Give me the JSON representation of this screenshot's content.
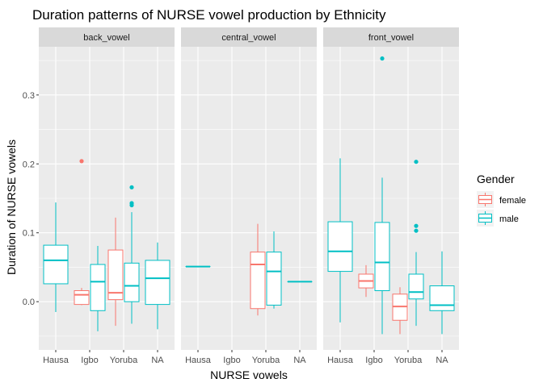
{
  "chart_data": {
    "type": "boxplot",
    "title": "Duration patterns of NURSE vowel production by Ethnicity",
    "xlabel": "NURSE vowels",
    "ylabel": "Duration of NURSE vowels",
    "ylim": [
      -0.07,
      0.37
    ],
    "yticks": [
      0.0,
      0.1,
      0.2,
      0.3
    ],
    "ytick_labels": [
      "0.0",
      "0.1",
      "0.2",
      "0.3"
    ],
    "categories": [
      "Hausa",
      "Igbo",
      "Yoruba",
      "NA"
    ],
    "facets": [
      "back_vowel",
      "central_vowel",
      "front_vowel"
    ],
    "grid": true,
    "legend": {
      "title": "Gender",
      "position": "right",
      "entries": [
        {
          "name": "female",
          "color": "#F8766D"
        },
        {
          "name": "male",
          "color": "#00BFC4"
        }
      ]
    },
    "boxes": [
      {
        "facet": "back_vowel",
        "category": "Hausa",
        "gender": "male",
        "min": -0.015,
        "q1": 0.026,
        "median": 0.06,
        "q3": 0.082,
        "max": 0.144,
        "outliers": []
      },
      {
        "facet": "back_vowel",
        "category": "Igbo",
        "gender": "female",
        "min": -0.005,
        "q1": -0.004,
        "median": 0.01,
        "q3": 0.016,
        "max": 0.02,
        "outliers": [
          0.204
        ]
      },
      {
        "facet": "back_vowel",
        "category": "Igbo",
        "gender": "male",
        "min": -0.043,
        "q1": -0.013,
        "median": 0.029,
        "q3": 0.054,
        "max": 0.081,
        "outliers": []
      },
      {
        "facet": "back_vowel",
        "category": "Yoruba",
        "gender": "female",
        "min": -0.035,
        "q1": 0.003,
        "median": 0.013,
        "q3": 0.075,
        "max": 0.122,
        "outliers": []
      },
      {
        "facet": "back_vowel",
        "category": "Yoruba",
        "gender": "male",
        "min": -0.032,
        "q1": 0.0,
        "median": 0.023,
        "q3": 0.056,
        "max": 0.13,
        "outliers": [
          0.14,
          0.143,
          0.166
        ]
      },
      {
        "facet": "back_vowel",
        "category": "NA",
        "gender": "male",
        "min": -0.04,
        "q1": -0.004,
        "median": 0.034,
        "q3": 0.06,
        "max": 0.086,
        "outliers": []
      },
      {
        "facet": "central_vowel",
        "category": "Hausa",
        "gender": "male",
        "min": 0.051,
        "q1": 0.051,
        "median": 0.051,
        "q3": 0.051,
        "max": 0.051,
        "outliers": []
      },
      {
        "facet": "central_vowel",
        "category": "Yoruba",
        "gender": "female",
        "min": -0.02,
        "q1": -0.01,
        "median": 0.054,
        "q3": 0.072,
        "max": 0.113,
        "outliers": []
      },
      {
        "facet": "central_vowel",
        "category": "Yoruba",
        "gender": "male",
        "min": -0.01,
        "q1": -0.005,
        "median": 0.044,
        "q3": 0.072,
        "max": 0.102,
        "outliers": []
      },
      {
        "facet": "central_vowel",
        "category": "NA",
        "gender": "male",
        "min": 0.029,
        "q1": 0.029,
        "median": 0.029,
        "q3": 0.029,
        "max": 0.029,
        "outliers": []
      },
      {
        "facet": "front_vowel",
        "category": "Hausa",
        "gender": "male",
        "min": -0.03,
        "q1": 0.044,
        "median": 0.073,
        "q3": 0.116,
        "max": 0.208,
        "outliers": []
      },
      {
        "facet": "front_vowel",
        "category": "Igbo",
        "gender": "female",
        "min": 0.007,
        "q1": 0.02,
        "median": 0.03,
        "q3": 0.04,
        "max": 0.053,
        "outliers": []
      },
      {
        "facet": "front_vowel",
        "category": "Igbo",
        "gender": "male",
        "min": -0.047,
        "q1": 0.016,
        "median": 0.057,
        "q3": 0.115,
        "max": 0.18,
        "outliers": [
          0.353
        ]
      },
      {
        "facet": "front_vowel",
        "category": "Yoruba",
        "gender": "female",
        "min": -0.047,
        "q1": -0.027,
        "median": -0.007,
        "q3": 0.011,
        "max": 0.021,
        "outliers": []
      },
      {
        "facet": "front_vowel",
        "category": "Yoruba",
        "gender": "male",
        "min": -0.035,
        "q1": 0.004,
        "median": 0.014,
        "q3": 0.04,
        "max": 0.072,
        "outliers": [
          0.103,
          0.11,
          0.203
        ]
      },
      {
        "facet": "front_vowel",
        "category": "NA",
        "gender": "male",
        "min": -0.047,
        "q1": -0.013,
        "median": -0.005,
        "q3": 0.023,
        "max": 0.073,
        "outliers": []
      }
    ]
  }
}
